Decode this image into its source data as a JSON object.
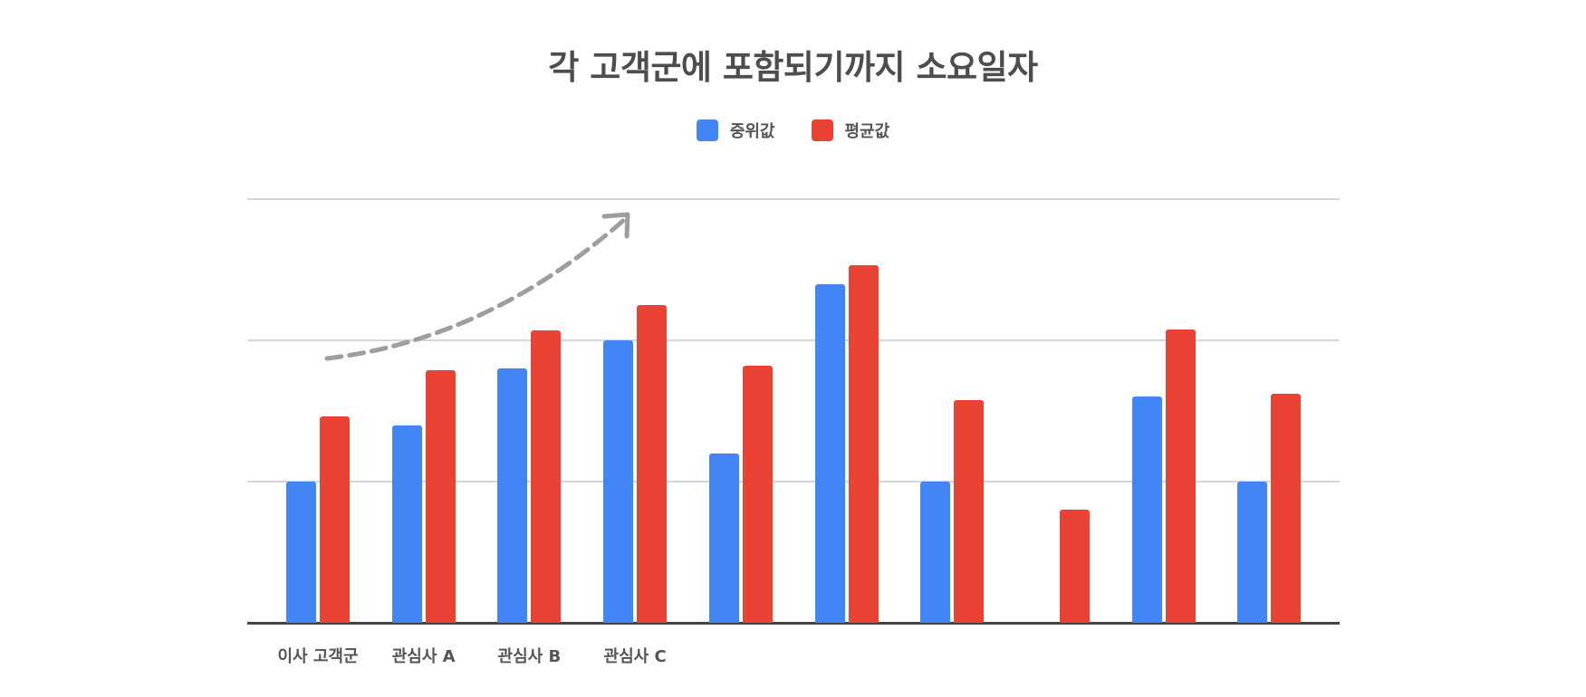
{
  "title": "각 고객군에 포함되기까지 소요일자",
  "legend": [
    {
      "label": "중위값",
      "color": "#4285f4"
    },
    {
      "label": "평균값",
      "color": "#ea4335"
    }
  ],
  "colors": {
    "median": "#4285f4",
    "mean": "#ea4335",
    "grid": "#d6d6d6",
    "axis": "#444444",
    "annotation": "#9e9e9e",
    "text": "#4d4d4d"
  },
  "chart_data": {
    "type": "bar",
    "title": "각 고객군에 포함되기까지 소요일자",
    "xlabel": "",
    "ylabel": "",
    "categories": [
      "이사 고객군",
      "관심사 A",
      "관심사 B",
      "관심사 C",
      "",
      "",
      "",
      "",
      "",
      ""
    ],
    "series": [
      {
        "name": "중위값",
        "color": "#4285f4",
        "values": [
          1.0,
          1.4,
          1.8,
          2.0,
          1.2,
          2.4,
          1.0,
          0,
          1.6,
          1.0
        ]
      },
      {
        "name": "평균값",
        "color": "#ea4335",
        "values": [
          1.46,
          1.79,
          2.07,
          2.25,
          1.82,
          2.53,
          1.58,
          0.8,
          2.08,
          1.62
        ]
      }
    ],
    "ylim": [
      0,
      3
    ],
    "gridlines": [
      1,
      2,
      3
    ],
    "grid": true,
    "y_tick_labels_visible": false,
    "legend_position": "top",
    "annotations": [
      {
        "type": "dashed-curved-arrow",
        "description": "upward trend arrow over first four groups"
      }
    ]
  }
}
